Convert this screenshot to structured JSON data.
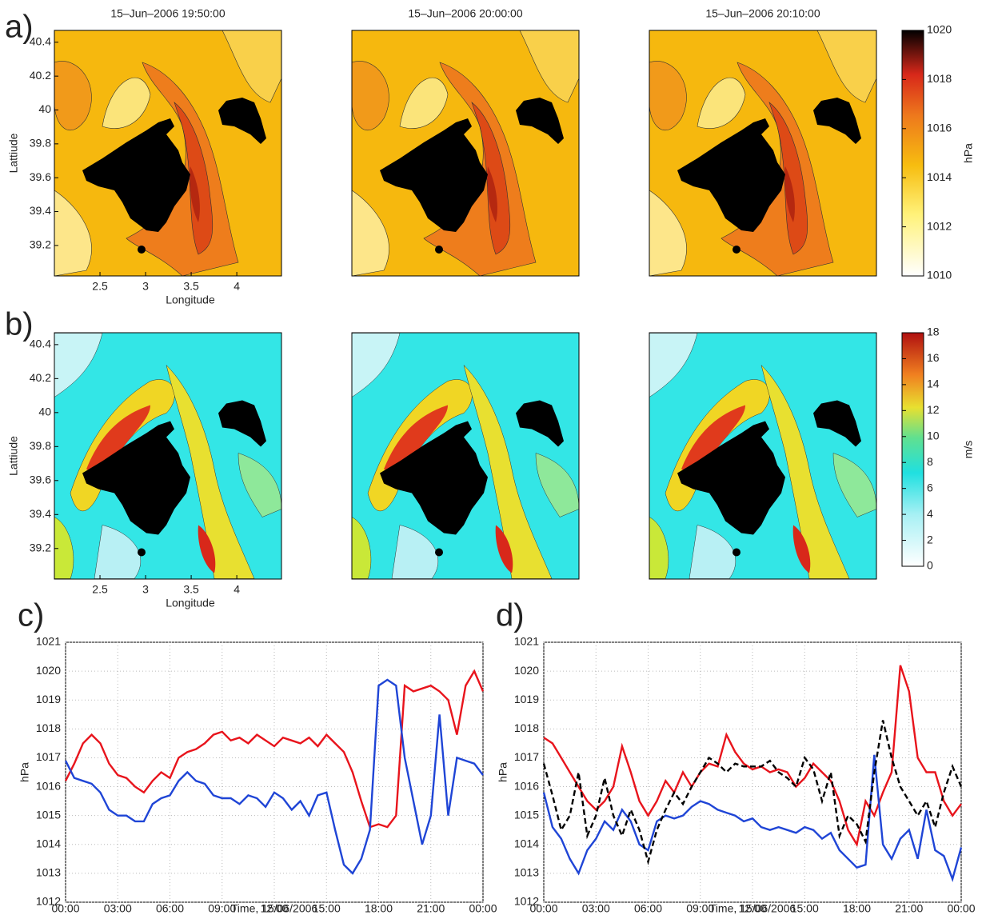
{
  "maps": [
    {
      "label": "a)",
      "titles": [
        "15–Jun–2006 19:50:00",
        "15–Jun–2006 20:00:00",
        "15–Jun–2006 20:10:00"
      ],
      "xlabel": "Longitude",
      "ylabel": "Lattiude",
      "xlim": [
        2.0,
        4.49
      ],
      "ylim": [
        39.02,
        40.47
      ],
      "xticks": [
        2.5,
        3,
        3.5,
        4
      ],
      "yticks": [
        39.2,
        39.4,
        39.6,
        39.8,
        40,
        40.2,
        40.4
      ],
      "colorbar": {
        "label": "hPa",
        "lim": [
          1010,
          1020
        ],
        "ticks": [
          1010,
          1012,
          1014,
          1016,
          1018,
          1020
        ]
      }
    },
    {
      "label": "b)",
      "xlabel": "Longitude",
      "ylabel": "Lattiude",
      "xlim": [
        2.0,
        4.49
      ],
      "ylim": [
        39.02,
        40.47
      ],
      "xticks": [
        2.5,
        3,
        3.5,
        4
      ],
      "yticks": [
        39.2,
        39.4,
        39.6,
        39.8,
        40,
        40.2,
        40.4
      ],
      "colorbar": {
        "label": "m/s",
        "lim": [
          0,
          18
        ],
        "ticks": [
          0,
          2,
          4,
          6,
          8,
          10,
          12,
          14,
          16,
          18
        ]
      }
    }
  ],
  "chart_data": [
    {
      "type": "line",
      "label": "c)",
      "xlabel": "Time, 15/06/2006",
      "ylabel": "hPa",
      "xlim": [
        0,
        24
      ],
      "ylim": [
        1012,
        1021
      ],
      "grid": true,
      "xticks": [
        {
          "value": 0,
          "label": "00:00"
        },
        {
          "value": 3,
          "label": "03:00"
        },
        {
          "value": 6,
          "label": "06:00"
        },
        {
          "value": 9,
          "label": "09:00"
        },
        {
          "value": 12,
          "label": "12:00"
        },
        {
          "value": 15,
          "label": "15:00"
        },
        {
          "value": 18,
          "label": "18:00"
        },
        {
          "value": 21,
          "label": "21:00"
        },
        {
          "value": 24,
          "label": "00:00"
        }
      ],
      "yticks": [
        1012,
        1013,
        1014,
        1015,
        1016,
        1017,
        1018,
        1019,
        1020,
        1021
      ],
      "x": [
        0,
        0.5,
        1,
        1.5,
        2,
        2.5,
        3,
        3.5,
        4,
        4.5,
        5,
        5.5,
        6,
        6.5,
        7,
        7.5,
        8,
        8.5,
        9,
        9.5,
        10,
        10.5,
        11,
        11.5,
        12,
        12.5,
        13,
        13.5,
        14,
        14.5,
        15,
        15.5,
        16,
        16.5,
        17,
        17.5,
        18,
        18.5,
        19,
        19.5,
        20,
        20.5,
        21,
        21.5,
        22,
        22.5,
        23,
        23.5,
        24
      ],
      "series": [
        {
          "color": "#e8141c",
          "values": [
            1016.2,
            1016.8,
            1017.5,
            1017.8,
            1017.5,
            1016.8,
            1016.4,
            1016.3,
            1016,
            1015.8,
            1016.2,
            1016.5,
            1016.3,
            1017,
            1017.2,
            1017.3,
            1017.5,
            1017.8,
            1017.9,
            1017.6,
            1017.7,
            1017.5,
            1017.8,
            1017.6,
            1017.4,
            1017.7,
            1017.6,
            1017.5,
            1017.7,
            1017.4,
            1017.8,
            1017.5,
            1017.2,
            1016.5,
            1015.5,
            1014.6,
            1014.7,
            1014.6,
            1015,
            1019.5,
            1019.3,
            1019.4,
            1019.5,
            1019.3,
            1019,
            1017.8,
            1019.5,
            1020,
            1019.3
          ]
        },
        {
          "color": "#1f45d6",
          "values": [
            1016.9,
            1016.3,
            1016.2,
            1016.1,
            1015.8,
            1015.2,
            1015,
            1015,
            1014.8,
            1014.8,
            1015.4,
            1015.6,
            1015.7,
            1016.2,
            1016.5,
            1016.2,
            1016.1,
            1015.7,
            1015.6,
            1015.6,
            1015.4,
            1015.7,
            1015.6,
            1015.3,
            1015.8,
            1015.6,
            1015.2,
            1015.5,
            1015,
            1015.7,
            1015.8,
            1014.5,
            1013.3,
            1013,
            1013.5,
            1014.5,
            1019.5,
            1019.7,
            1019.5,
            1017,
            1015.5,
            1014,
            1015,
            1018.5,
            1015,
            1017,
            1016.9,
            1016.8,
            1016.4
          ]
        }
      ]
    },
    {
      "type": "line",
      "label": "d)",
      "xlabel": "Time, 15/06/2006",
      "ylabel": "hPa",
      "xlim": [
        0,
        24
      ],
      "ylim": [
        1012,
        1021
      ],
      "grid": true,
      "xticks": [
        {
          "value": 0,
          "label": "00:00"
        },
        {
          "value": 3,
          "label": "03:00"
        },
        {
          "value": 6,
          "label": "06:00"
        },
        {
          "value": 9,
          "label": "09:00"
        },
        {
          "value": 12,
          "label": "12:00"
        },
        {
          "value": 15,
          "label": "15:00"
        },
        {
          "value": 18,
          "label": "18:00"
        },
        {
          "value": 21,
          "label": "21:00"
        },
        {
          "value": 24,
          "label": "00:00"
        }
      ],
      "yticks": [
        1012,
        1013,
        1014,
        1015,
        1016,
        1017,
        1018,
        1019,
        1020,
        1021
      ],
      "x": [
        0,
        0.5,
        1,
        1.5,
        2,
        2.5,
        3,
        3.5,
        4,
        4.5,
        5,
        5.5,
        6,
        6.5,
        7,
        7.5,
        8,
        8.5,
        9,
        9.5,
        10,
        10.5,
        11,
        11.5,
        12,
        12.5,
        13,
        13.5,
        14,
        14.5,
        15,
        15.5,
        16,
        16.5,
        17,
        17.5,
        18,
        18.5,
        19,
        19.5,
        20,
        20.5,
        21,
        21.5,
        22,
        22.5,
        23,
        23.5,
        24
      ],
      "series": [
        {
          "color": "#e8141c",
          "values": [
            1017.7,
            1017.5,
            1017,
            1016.5,
            1016,
            1015.5,
            1015.2,
            1015.5,
            1016,
            1017.4,
            1016.5,
            1015.5,
            1015,
            1015.5,
            1016.2,
            1015.8,
            1016.5,
            1016,
            1016.5,
            1016.8,
            1016.7,
            1017.8,
            1017.2,
            1016.8,
            1016.6,
            1016.7,
            1016.5,
            1016.6,
            1016.5,
            1016,
            1016.3,
            1016.8,
            1016.5,
            1016.2,
            1015.5,
            1014.5,
            1014,
            1015.5,
            1015,
            1015.8,
            1016.5,
            1020.2,
            1019.3,
            1017,
            1016.5,
            1016.5,
            1015.5,
            1015,
            1015.4
          ]
        },
        {
          "color": "#1f45d6",
          "values": [
            1015.8,
            1014.6,
            1014.2,
            1013.5,
            1013,
            1013.8,
            1014.2,
            1014.8,
            1014.5,
            1015.2,
            1014.8,
            1014,
            1013.8,
            1014.8,
            1015,
            1014.9,
            1015,
            1015.3,
            1015.5,
            1015.4,
            1015.2,
            1015.1,
            1015,
            1014.8,
            1014.9,
            1014.6,
            1014.5,
            1014.6,
            1014.5,
            1014.4,
            1014.6,
            1014.5,
            1014.2,
            1014.4,
            1013.8,
            1013.5,
            1013.2,
            1013.3,
            1017.1,
            1014,
            1013.5,
            1014.2,
            1014.5,
            1013.5,
            1015.2,
            1013.8,
            1013.6,
            1012.8,
            1013.9
          ]
        },
        {
          "color": "#000000",
          "dashed": true,
          "values": [
            1016.8,
            1015.7,
            1014.5,
            1015,
            1016.5,
            1014.3,
            1015,
            1016.3,
            1015,
            1014.3,
            1015.2,
            1014.5,
            1013.4,
            1014.5,
            1015.2,
            1015.8,
            1015.4,
            1016,
            1016.5,
            1017,
            1016.8,
            1016.5,
            1016.8,
            1016.7,
            1016.7,
            1016.7,
            1016.9,
            1016.5,
            1016.3,
            1016,
            1017,
            1016.6,
            1015.5,
            1016.5,
            1014.3,
            1015,
            1014.7,
            1014.1,
            1016.5,
            1018.3,
            1017,
            1016,
            1015.5,
            1015,
            1015.5,
            1014.6,
            1015.8,
            1016.7,
            1016
          ]
        }
      ]
    }
  ]
}
